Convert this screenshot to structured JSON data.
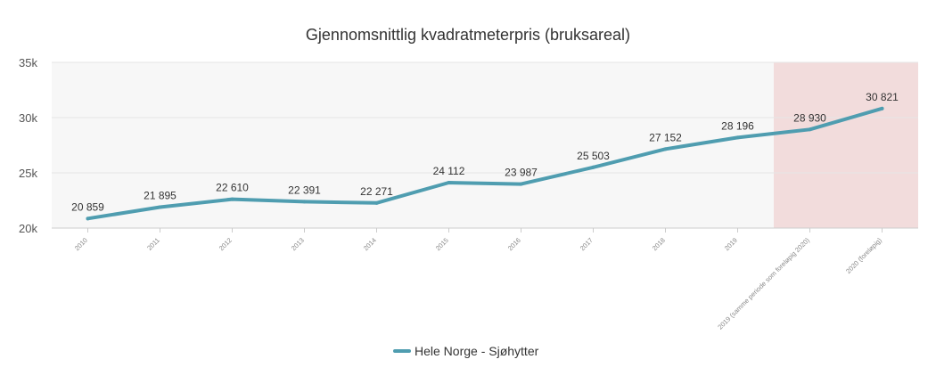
{
  "chart_data": {
    "type": "line",
    "title": "Gjennomsnittlig kvadratmeterpris (bruksareal)",
    "xlabel": "",
    "ylabel": "",
    "categories": [
      "2010",
      "2011",
      "2012",
      "2013",
      "2014",
      "2015",
      "2016",
      "2017",
      "2018",
      "2019",
      "2019 (samme periode som foreløpig 2020)",
      "2020 (foreløpig)"
    ],
    "series": [
      {
        "name": "Hele Norge - Sjøhytter",
        "values": [
          20859,
          21895,
          22610,
          22391,
          22271,
          24112,
          23987,
          25503,
          27152,
          28196,
          28930,
          30821
        ],
        "labels": [
          "20 859",
          "21 895",
          "22 610",
          "22 391",
          "22 271",
          "24 112",
          "23 987",
          "25 503",
          "27 152",
          "28 196",
          "28 930",
          "30 821"
        ],
        "color": "#4f9db0"
      }
    ],
    "ylim": [
      20000,
      35000
    ],
    "yticks": [
      20000,
      25000,
      30000,
      35000
    ],
    "ytick_labels": [
      "20k",
      "25k",
      "30k",
      "35k"
    ],
    "highlight_categories": [
      "2019 (samme periode som foreløpig 2020)",
      "2020 (foreløpig)"
    ],
    "highlight_color": "#f2dcdc",
    "plot_background": "#f7f7f7",
    "grid": true,
    "legend_position": "bottom-center"
  }
}
